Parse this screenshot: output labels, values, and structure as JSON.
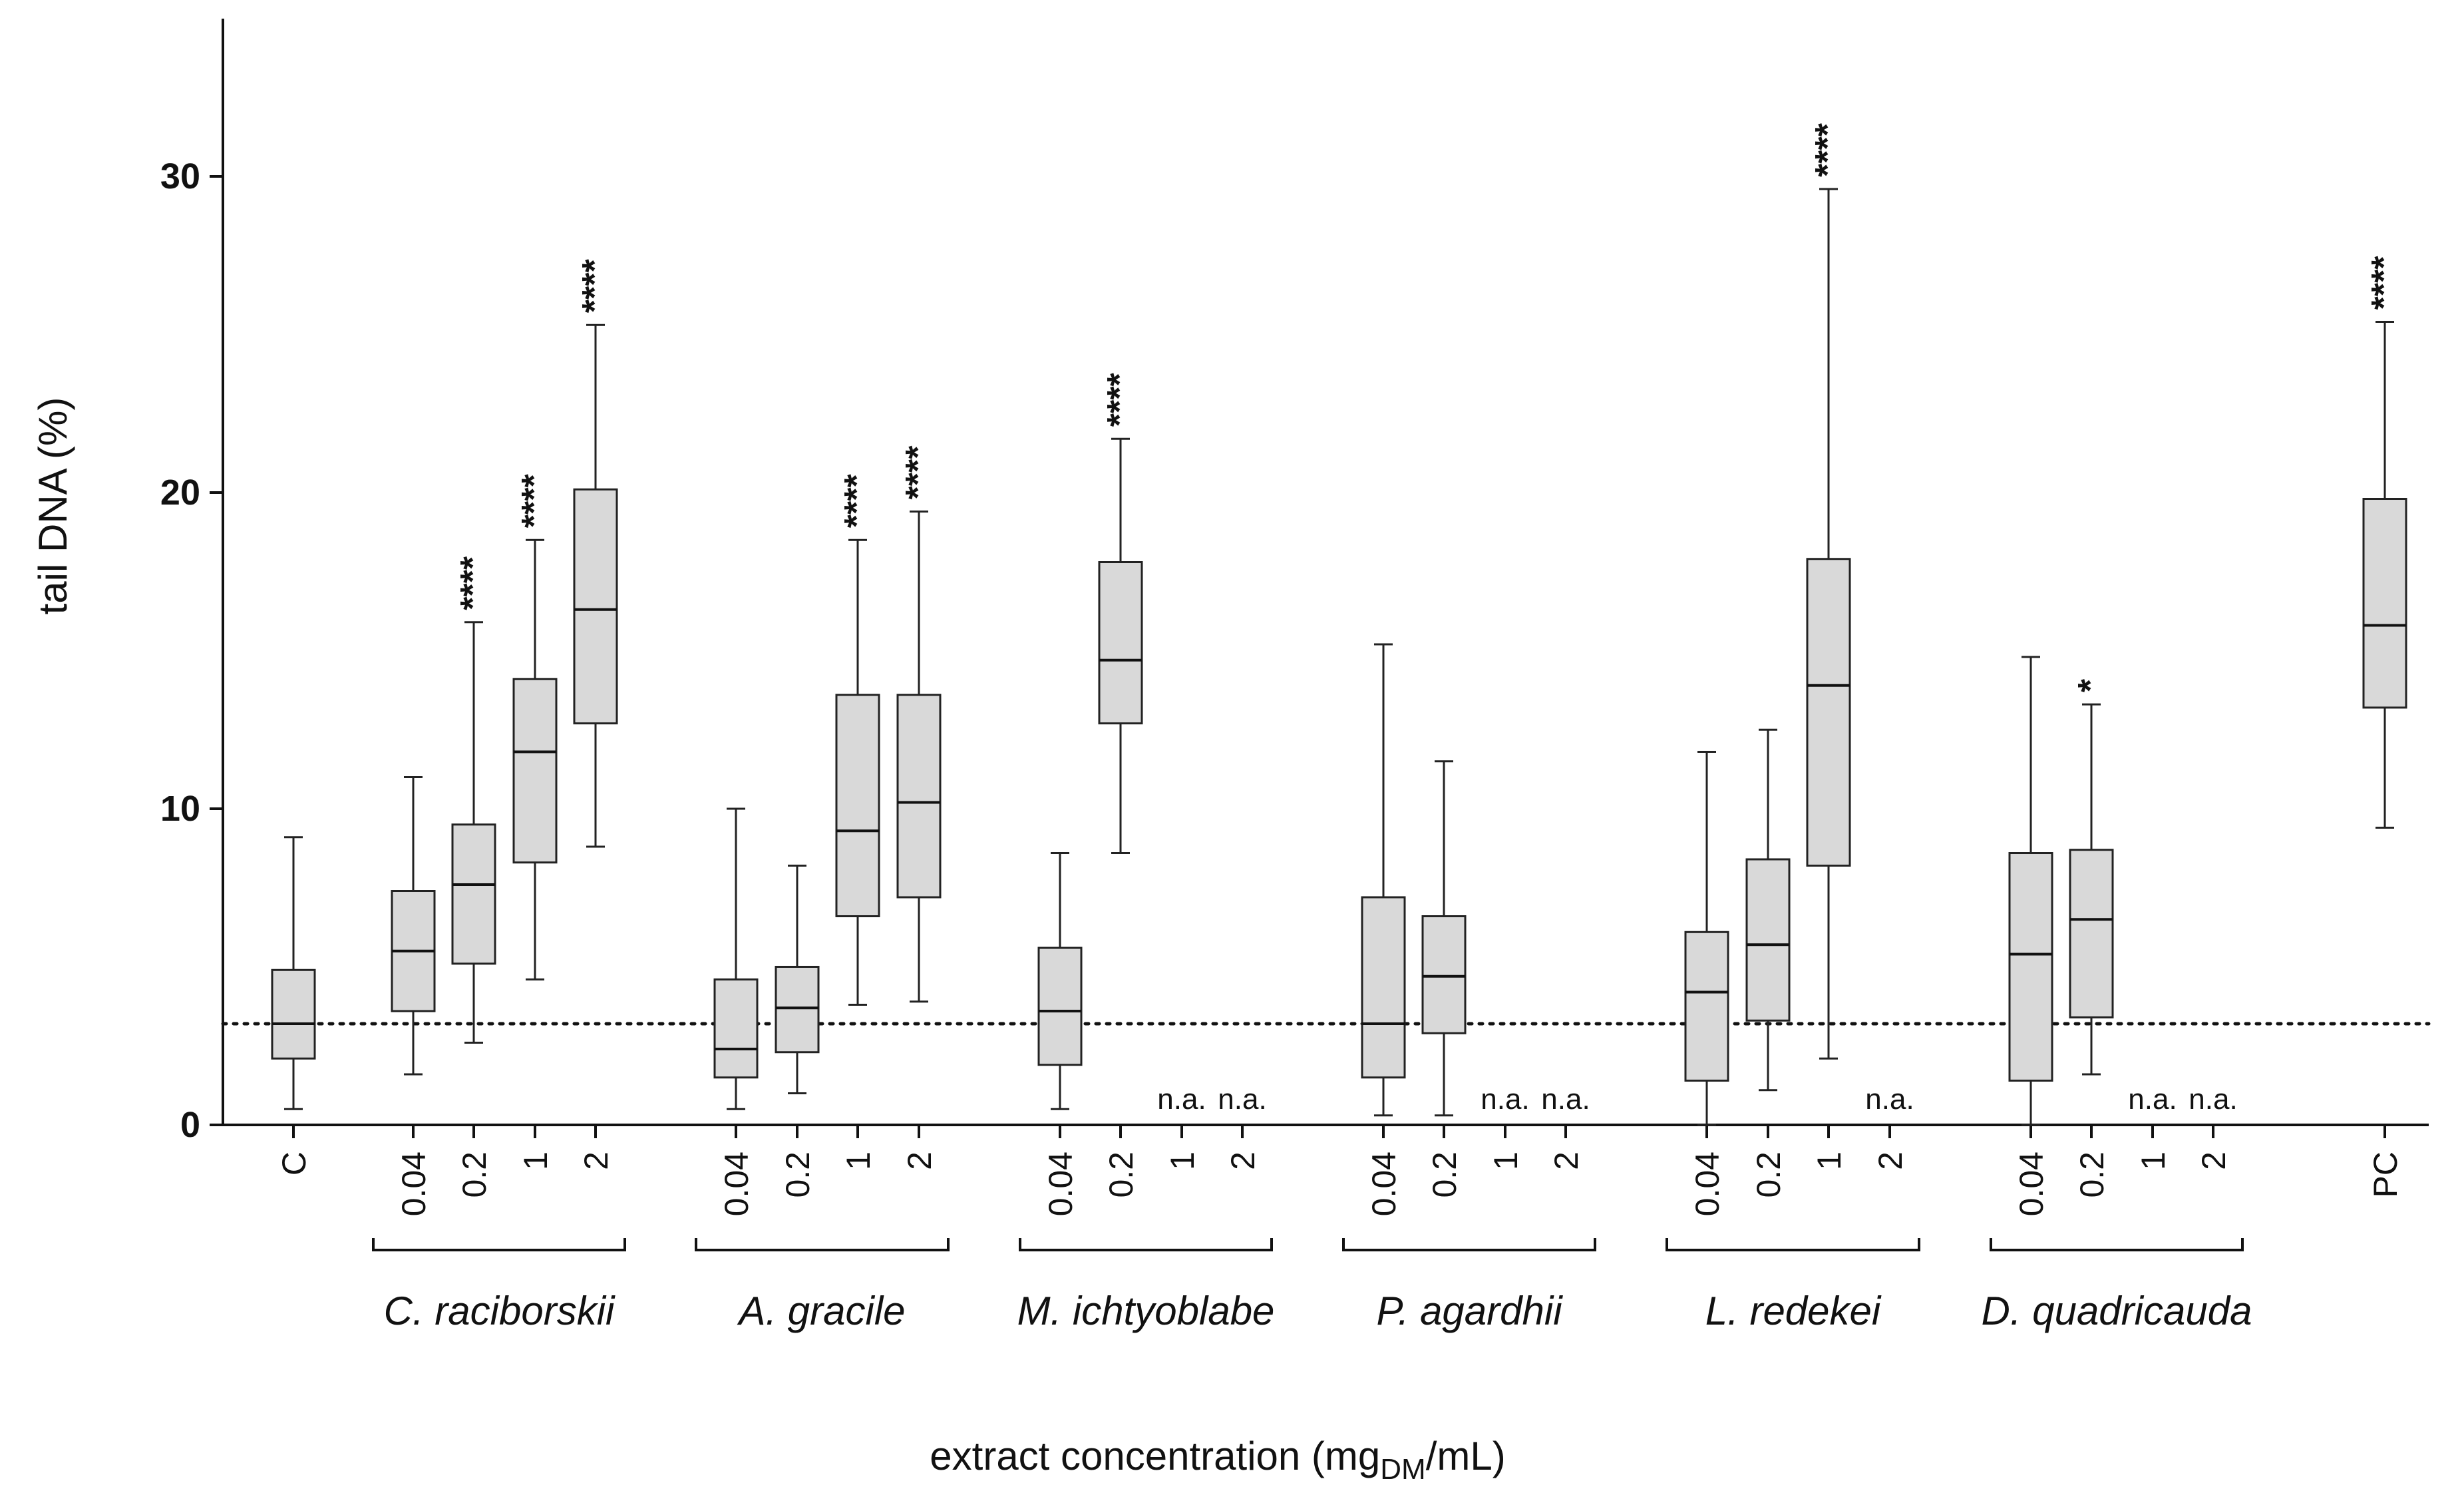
{
  "chart_data": {
    "type": "boxplot",
    "title": "",
    "ylabel": "tail DNA (%)",
    "xlabel": "extract concentration (mg_DM/mL)",
    "xlabel_main": "extract concentration (mg",
    "xlabel_sub": "DM",
    "xlabel_end": "/mL)",
    "ylim": [
      0,
      35
    ],
    "yticks": [
      0,
      10,
      20,
      30
    ],
    "reference_line": 3.2,
    "groups": [
      {
        "name": "",
        "boxes": [
          {
            "label": "C",
            "stats": [
              0.5,
              2.1,
              3.2,
              4.9,
              9.1
            ],
            "sig": ""
          }
        ]
      },
      {
        "name": "C. raciborskii",
        "boxes": [
          {
            "label": "0.04",
            "stats": [
              1.6,
              3.6,
              5.5,
              7.4,
              11.0
            ],
            "sig": ""
          },
          {
            "label": "0.2",
            "stats": [
              2.6,
              5.1,
              7.6,
              9.5,
              15.9
            ],
            "sig": "****"
          },
          {
            "label": "1",
            "stats": [
              4.6,
              8.3,
              11.8,
              14.1,
              18.5
            ],
            "sig": "****"
          },
          {
            "label": "2",
            "stats": [
              8.8,
              12.7,
              16.3,
              20.1,
              25.3
            ],
            "sig": "****"
          }
        ]
      },
      {
        "name": "A. gracile",
        "boxes": [
          {
            "label": "0.04",
            "stats": [
              0.5,
              1.5,
              2.4,
              4.6,
              10.0
            ],
            "sig": ""
          },
          {
            "label": "0.2",
            "stats": [
              1.0,
              2.3,
              3.7,
              5.0,
              8.2
            ],
            "sig": ""
          },
          {
            "label": "1",
            "stats": [
              3.8,
              6.6,
              9.3,
              13.6,
              18.5
            ],
            "sig": "****"
          },
          {
            "label": "2",
            "stats": [
              3.9,
              7.2,
              10.2,
              13.6,
              19.4
            ],
            "sig": "****"
          }
        ]
      },
      {
        "name": "M. ichtyoblabe",
        "boxes": [
          {
            "label": "0.04",
            "stats": [
              0.5,
              1.9,
              3.6,
              5.6,
              8.6
            ],
            "sig": ""
          },
          {
            "label": "0.2",
            "stats": [
              8.6,
              12.7,
              14.7,
              17.8,
              21.7
            ],
            "sig": "****"
          },
          {
            "label": "1",
            "stats": null,
            "sig": "n.a."
          },
          {
            "label": "2",
            "stats": null,
            "sig": "n.a."
          }
        ]
      },
      {
        "name": "P. agardhii",
        "boxes": [
          {
            "label": "0.04",
            "stats": [
              0.3,
              1.5,
              3.2,
              7.2,
              15.2
            ],
            "sig": ""
          },
          {
            "label": "0.2",
            "stats": [
              0.3,
              2.9,
              4.7,
              6.6,
              11.5
            ],
            "sig": ""
          },
          {
            "label": "1",
            "stats": null,
            "sig": "n.a."
          },
          {
            "label": "2",
            "stats": null,
            "sig": "n.a."
          }
        ]
      },
      {
        "name": "L. redekei",
        "boxes": [
          {
            "label": "0.04",
            "stats": [
              0.0,
              1.4,
              4.2,
              6.1,
              11.8
            ],
            "sig": ""
          },
          {
            "label": "0.2",
            "stats": [
              1.1,
              3.3,
              5.7,
              8.4,
              12.5
            ],
            "sig": ""
          },
          {
            "label": "1",
            "stats": [
              2.1,
              8.2,
              13.9,
              17.9,
              29.6
            ],
            "sig": "****"
          },
          {
            "label": "2",
            "stats": null,
            "sig": "n.a."
          }
        ]
      },
      {
        "name": "D. quadricauda",
        "boxes": [
          {
            "label": "0.04",
            "stats": [
              0.0,
              1.4,
              5.4,
              8.6,
              14.8
            ],
            "sig": ""
          },
          {
            "label": "0.2",
            "stats": [
              1.6,
              3.4,
              6.5,
              8.7,
              13.3
            ],
            "sig": "*"
          },
          {
            "label": "1",
            "stats": null,
            "sig": "n.a."
          },
          {
            "label": "2",
            "stats": null,
            "sig": "n.a."
          }
        ]
      },
      {
        "name": "",
        "boxes": [
          {
            "label": "PC",
            "stats": [
              9.4,
              13.2,
              15.8,
              19.8,
              25.4
            ],
            "sig": "****"
          }
        ]
      }
    ]
  }
}
